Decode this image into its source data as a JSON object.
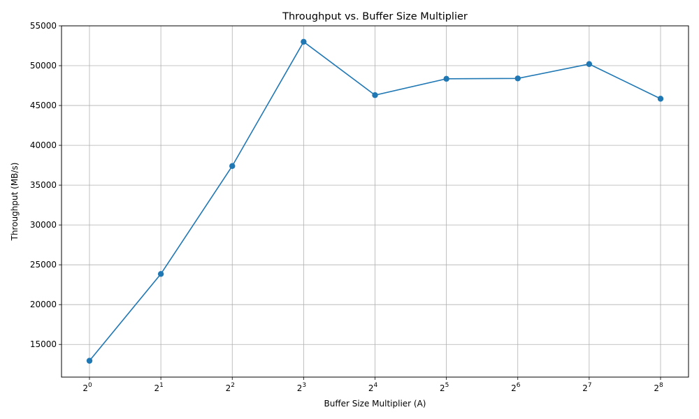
{
  "chart_data": {
    "type": "line",
    "title": "Throughput vs. Buffer Size Multiplier",
    "xlabel": "Buffer Size Multiplier (A)",
    "ylabel": "Throughput (MB/s)",
    "x_scale": "log2",
    "x": [
      1,
      2,
      4,
      8,
      16,
      32,
      64,
      128,
      256
    ],
    "x_tick_base": "2",
    "x_tick_exponents": [
      "0",
      "1",
      "2",
      "3",
      "4",
      "5",
      "6",
      "7",
      "8"
    ],
    "y_ticks": [
      15000,
      20000,
      25000,
      30000,
      35000,
      40000,
      45000,
      50000,
      55000
    ],
    "ylim": [
      10900,
      55000
    ],
    "grid": true,
    "series": [
      {
        "color": "#1f77b4",
        "marker": "circle",
        "values": [
          12950,
          23850,
          37400,
          53000,
          46300,
          48350,
          48400,
          50200,
          45850
        ]
      }
    ]
  }
}
